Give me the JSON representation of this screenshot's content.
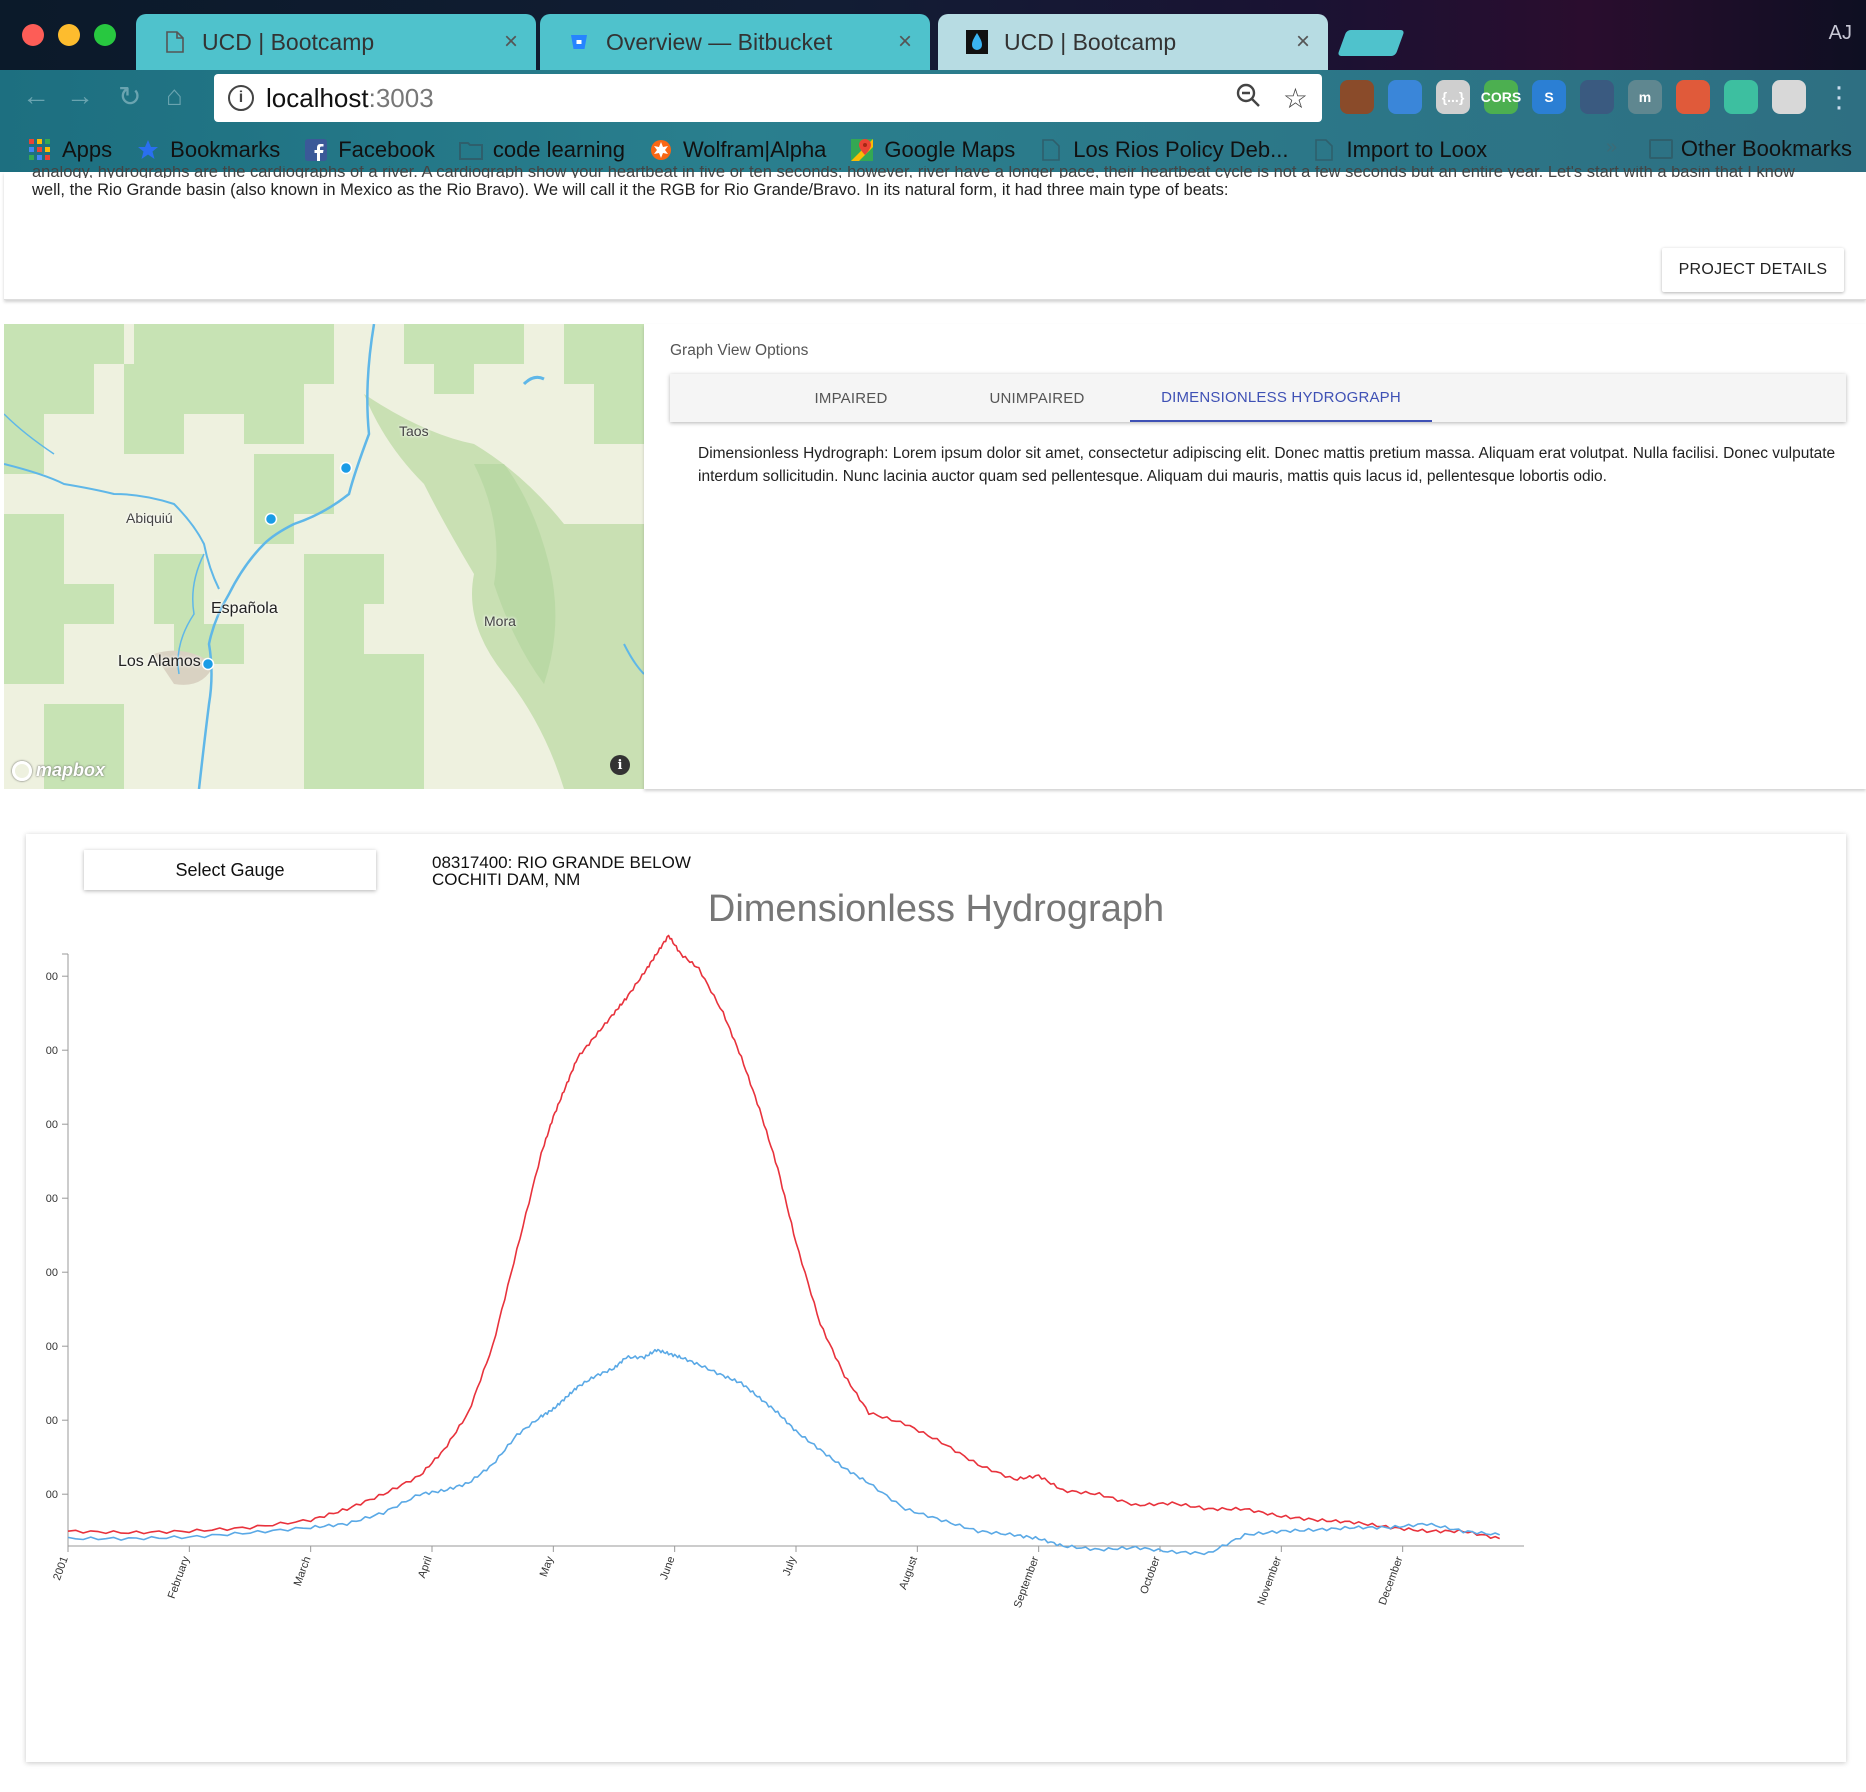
{
  "browser": {
    "tabs": [
      {
        "title": "UCD | Bootcamp",
        "icon": "document-icon",
        "active": false
      },
      {
        "title": "Overview — Bitbucket",
        "icon": "bitbucket-icon",
        "active": false
      },
      {
        "title": "UCD | Bootcamp",
        "icon": "water-drop-icon",
        "active": true
      }
    ],
    "close_glyph": "×",
    "profile": "AJ",
    "url_host": "localhost",
    "url_port": ":3003",
    "extensions": [
      {
        "name": "avatar-extension-icon",
        "label": "",
        "color": "#8a4b2a"
      },
      {
        "name": "eyedropper-extension-icon",
        "label": "",
        "color": "#3a86d9"
      },
      {
        "name": "json-extension-icon",
        "label": "{...}",
        "color": "#cfcfcf"
      },
      {
        "name": "cors-extension-icon",
        "label": "CORS",
        "color": "#4caf50"
      },
      {
        "name": "s-extension-icon",
        "label": "S",
        "color": "#2b7fd4"
      },
      {
        "name": "half-circle-extension-icon",
        "label": "",
        "color": "#3a5a80"
      },
      {
        "name": "m-extension-icon",
        "label": "m",
        "color": "#5f8790"
      },
      {
        "name": "paw-extension-icon",
        "label": "",
        "color": "#e05a3a"
      },
      {
        "name": "target-extension-icon",
        "label": "",
        "color": "#3dbfa0"
      },
      {
        "name": "gift-extension-icon",
        "label": "",
        "color": "#d8d8d8"
      }
    ],
    "bookmarks": [
      {
        "label": "Apps",
        "icon": "apps-grid-icon"
      },
      {
        "label": "Bookmarks",
        "icon": "star-icon"
      },
      {
        "label": "Facebook",
        "icon": "facebook-icon"
      },
      {
        "label": "code learning",
        "icon": "folder-icon"
      },
      {
        "label": "Wolfram|Alpha",
        "icon": "wolfram-icon"
      },
      {
        "label": "Google Maps",
        "icon": "google-maps-icon"
      },
      {
        "label": "Los Rios Policy Deb...",
        "icon": "document-icon"
      },
      {
        "label": "Import to Loox",
        "icon": "document-icon"
      }
    ],
    "bookmarks_overflow": "»",
    "other_bookmarks": "Other Bookmarks"
  },
  "intro": {
    "line_cut": "analogy, hydrographs are the cardiographs of a river. A cardiograph show your heartbeat in five or ten seconds; however, river have a longer pace, their heartbeat cycle is not a few seconds but an entire year. Let's start with a basin that I know pretty",
    "line2": "well, the Rio Grande basin (also known in Mexico as the Rio Bravo). We will call it the RGB for Rio Grande/Bravo. In its natural form, it had three main type of beats:",
    "project_button": "PROJECT DETAILS"
  },
  "map": {
    "labels": [
      "Taos",
      "Abiquiú",
      "Española",
      "Mora",
      "Los Alamos"
    ],
    "attribution": "mapbox",
    "info_glyph": "i",
    "colors": {
      "land": "#eef1df",
      "forest": "#c7e3b4",
      "water": "#5fb7e8",
      "marker": "#1a9ce6"
    }
  },
  "graph_options": {
    "title": "Graph View Options",
    "tabs": [
      "IMPAIRED",
      "UNIMPAIRED",
      "DIMENSIONLESS HYDROGRAPH"
    ],
    "active_tab": 2,
    "description": "Dimensionless Hydrograph: Lorem ipsum dolor sit amet, consectetur adipiscing elit. Donec mattis pretium massa. Aliquam erat volutpat. Nulla facilisi. Donec vulputate interdum sollicitudin. Nunc lacinia auctor quam sed pellentesque. Aliquam dui mauris, mattis quis lacus id, pellentesque lobortis odio."
  },
  "gauge": {
    "select_label": "Select Gauge",
    "name": "08317400: RIO GRANDE BELOW COCHITI DAM, NM"
  },
  "chart_data": {
    "type": "line",
    "title": "Dimensionless Hydrograph",
    "xlabel": "",
    "ylabel": "",
    "x_ticks": [
      "2001",
      "February",
      "March",
      "April",
      "May",
      "June",
      "July",
      "August",
      "September",
      "October",
      "November",
      "December"
    ],
    "y_ticks": [
      "00",
      "00",
      "00",
      "00",
      "00",
      "00",
      "00",
      "00"
    ],
    "xlim": [
      0,
      12
    ],
    "ylim": [
      0,
      8
    ],
    "grid": false,
    "series": [
      {
        "color": "#e8323c",
        "x": [
          0,
          0.5,
          1,
          1.5,
          2,
          2.3,
          2.6,
          2.9,
          3.1,
          3.3,
          3.5,
          3.7,
          3.9,
          4.0,
          4.1,
          4.2,
          4.35,
          4.5,
          4.6,
          4.75,
          4.85,
          4.95,
          5.05,
          5.2,
          5.4,
          5.55,
          5.7,
          5.85,
          6.0,
          6.2,
          6.4,
          6.6,
          6.9,
          7.2,
          7.5,
          7.8,
          8.0,
          8.2,
          8.5,
          8.8,
          9.1,
          9.4,
          9.7,
          10.0,
          10.3,
          10.6,
          10.9,
          11.2,
          11.5,
          11.8
        ],
        "y": [
          0.2,
          0.18,
          0.2,
          0.25,
          0.35,
          0.5,
          0.7,
          0.95,
          1.3,
          1.8,
          2.7,
          4.0,
          5.3,
          5.8,
          6.2,
          6.6,
          6.9,
          7.2,
          7.4,
          7.75,
          8.0,
          8.25,
          8.0,
          7.8,
          7.2,
          6.6,
          5.9,
          5.1,
          4.1,
          3.0,
          2.3,
          1.8,
          1.65,
          1.4,
          1.1,
          0.9,
          0.95,
          0.75,
          0.7,
          0.55,
          0.58,
          0.5,
          0.5,
          0.4,
          0.35,
          0.32,
          0.25,
          0.2,
          0.2,
          0.1
        ]
      },
      {
        "color": "#5aa9e6",
        "x": [
          0,
          0.5,
          1,
          1.5,
          2,
          2.3,
          2.6,
          2.9,
          3.1,
          3.3,
          3.5,
          3.7,
          3.9,
          4.0,
          4.1,
          4.2,
          4.35,
          4.5,
          4.6,
          4.75,
          4.85,
          4.95,
          5.05,
          5.2,
          5.4,
          5.55,
          5.7,
          5.85,
          6.0,
          6.2,
          6.4,
          6.6,
          6.9,
          7.2,
          7.5,
          7.8,
          8.0,
          8.2,
          8.5,
          8.8,
          9.1,
          9.4,
          9.7,
          10.0,
          10.3,
          10.6,
          10.9,
          11.2,
          11.5,
          11.8
        ],
        "y": [
          0.1,
          0.1,
          0.12,
          0.18,
          0.25,
          0.3,
          0.45,
          0.7,
          0.75,
          0.85,
          1.1,
          1.5,
          1.75,
          1.85,
          2.0,
          2.15,
          2.3,
          2.4,
          2.55,
          2.55,
          2.65,
          2.6,
          2.55,
          2.45,
          2.3,
          2.2,
          2.0,
          1.8,
          1.55,
          1.3,
          1.05,
          0.85,
          0.5,
          0.35,
          0.2,
          0.15,
          0.1,
          0.0,
          -0.05,
          -0.02,
          -0.08,
          -0.1,
          0.15,
          0.2,
          0.22,
          0.25,
          0.25,
          0.3,
          0.2,
          0.15
        ]
      }
    ]
  }
}
